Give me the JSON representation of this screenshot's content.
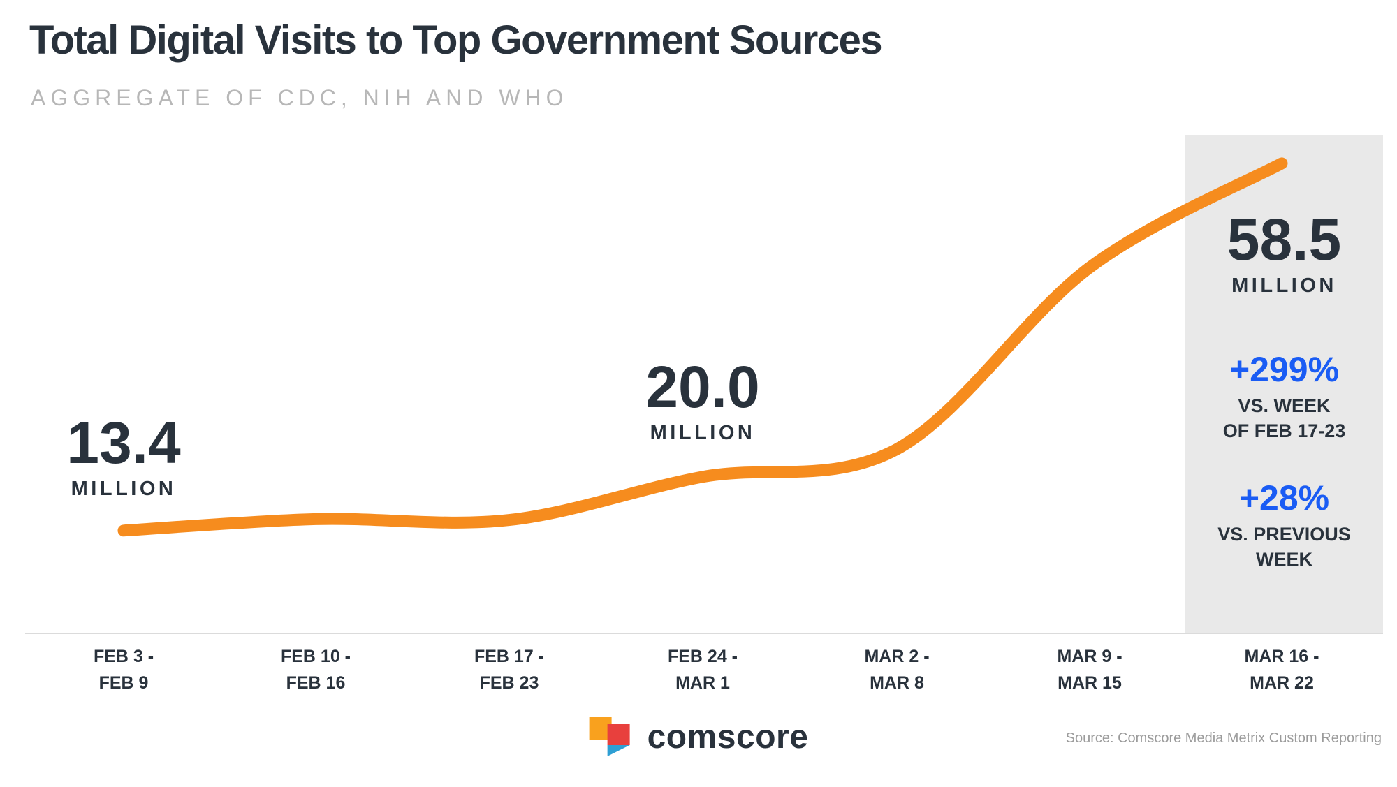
{
  "header": {
    "title": "Total Digital Visits to Top Government Sources",
    "subtitle": "AGGREGATE OF CDC, NIH AND WHO"
  },
  "chart_data": {
    "type": "line",
    "title": "Total Digital Visits to Top Government Sources",
    "subtitle": "Aggregate of CDC, NIH and WHO",
    "unit": "millions of visits per week",
    "categories": [
      "FEB 3 -\nFEB 9",
      "FEB 10 -\nFEB 16",
      "FEB 17 -\nFEB 23",
      "FEB 24 -\nMAR 1",
      "MAR 2 -\nMAR 8",
      "MAR 9 -\nMAR 15",
      "MAR 16 -\nMAR 22"
    ],
    "values": [
      13.4,
      14.8,
      14.7,
      20.0,
      23.4,
      45.7,
      58.5
    ],
    "ylim": [
      0,
      62
    ],
    "grid": false,
    "legend": false,
    "line_color": "#F68C1E",
    "highlighted_category_index": 6,
    "annotations": [
      {
        "category_index": 0,
        "value": "13.4",
        "unit": "MILLION"
      },
      {
        "category_index": 3,
        "value": "20.0",
        "unit": "MILLION"
      },
      {
        "category_index": 6,
        "value": "58.5",
        "unit": "MILLION"
      }
    ]
  },
  "highlight_panel": {
    "stats": [
      {
        "value": "+299%",
        "label": "VS. WEEK\nOF FEB 17-23"
      },
      {
        "value": "+28%",
        "label": "VS. PREVIOUS\nWEEK"
      }
    ]
  },
  "footer": {
    "brand": "comscore",
    "source": "Source: Comscore Media Metrix Custom Reporting"
  },
  "colors": {
    "line_orange": "#F68C1E",
    "accent_blue": "#1A5CF4",
    "dark_text": "#29323C",
    "highlight_band": "#E9E9E9",
    "logo_orange": "#F9A11E",
    "logo_red": "#E8403D",
    "logo_blue": "#2E9FD4"
  }
}
